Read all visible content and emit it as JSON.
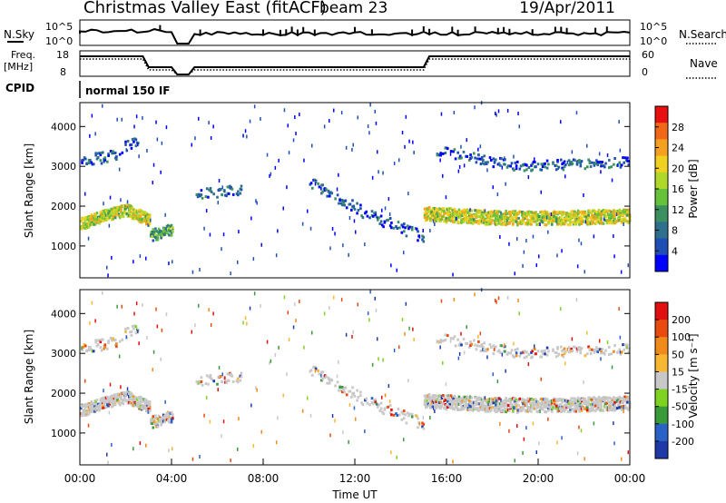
{
  "header": {
    "title": "Christmas Valley East (fitACF)",
    "beam": "beam 23",
    "date": "19/Apr/2011"
  },
  "strips": {
    "nsky_label": "N.Sky",
    "nsky_ticks": [
      "10^5",
      "10^0"
    ],
    "nsearch_label": "N.Search",
    "freq_label_1": "Freq.",
    "freq_label_2": "[MHz]",
    "freq_ticks": [
      "18",
      "8"
    ],
    "nave_label": "Nave",
    "nave_ticks": [
      "60",
      "0"
    ],
    "cpid_label": "CPID",
    "cpid_value": "normal 150 IF"
  },
  "chart_data": [
    {
      "type": "heatmap",
      "name": "power",
      "ylabel": "Slant Range [km]",
      "yticks": [
        1000,
        2000,
        3000,
        4000
      ],
      "ylim": [
        200,
        4600
      ],
      "colorbar": {
        "label": "Power [dB]",
        "ticks": [
          "4",
          "8",
          "12",
          "16",
          "20",
          "24",
          "28"
        ],
        "colors": [
          "#0000ff",
          "#1f4fb4",
          "#2e6f8e",
          "#3c9060",
          "#66c23a",
          "#b0d82a",
          "#f0d020",
          "#f5a020",
          "#f06818",
          "#e81010"
        ]
      },
      "data_gap_hours": [
        4.0,
        4.8
      ],
      "bands": [
        {
          "t": [
            0.0,
            1.0,
            2.0,
            3.0
          ],
          "range": [
            1550,
            1750,
            1900,
            1650
          ],
          "width": 300,
          "level": "high"
        },
        {
          "t": [
            3.0,
            4.0
          ],
          "range": [
            1250,
            1400
          ],
          "width": 300,
          "level": "mid"
        },
        {
          "t": [
            15.0,
            18.0,
            21.0,
            24.0
          ],
          "range": [
            1800,
            1700,
            1700,
            1750
          ],
          "width": 350,
          "level": "high"
        },
        {
          "t": [
            0.0,
            1.5,
            2.5
          ],
          "range": [
            3100,
            3300,
            3700
          ],
          "width": 300,
          "level": "low"
        },
        {
          "t": [
            5.0,
            7.0
          ],
          "range": [
            2300,
            2400
          ],
          "width": 250,
          "level": "low"
        },
        {
          "t": [
            10.0,
            12.5,
            15.0
          ],
          "range": [
            2600,
            1800,
            1200
          ],
          "width": 300,
          "level": "low"
        },
        {
          "t": [
            15.5,
            19.0,
            24.0
          ],
          "range": [
            3400,
            3000,
            3100
          ],
          "width": 250,
          "level": "low"
        }
      ]
    },
    {
      "type": "heatmap",
      "name": "velocity",
      "xlabel": "Time UT",
      "xticks": [
        "00:00",
        "04:00",
        "08:00",
        "12:00",
        "16:00",
        "20:00",
        "00:00"
      ],
      "xlim_hours": [
        0,
        24
      ],
      "ylabel": "Slant Range [km]",
      "yticks": [
        1000,
        2000,
        3000,
        4000
      ],
      "ylim": [
        200,
        4600
      ],
      "colorbar": {
        "label": "Velocity [m s⁻¹]",
        "ticks": [
          "200",
          "100",
          "50",
          "15",
          "-15",
          "-50",
          "-100",
          "-200"
        ],
        "colors": [
          "#1f3aa8",
          "#2a62c8",
          "#3a9a3a",
          "#7ed321",
          "#c8c8c8",
          "#f7b733",
          "#f08a1a",
          "#e84a10",
          "#e01010"
        ]
      }
    }
  ]
}
